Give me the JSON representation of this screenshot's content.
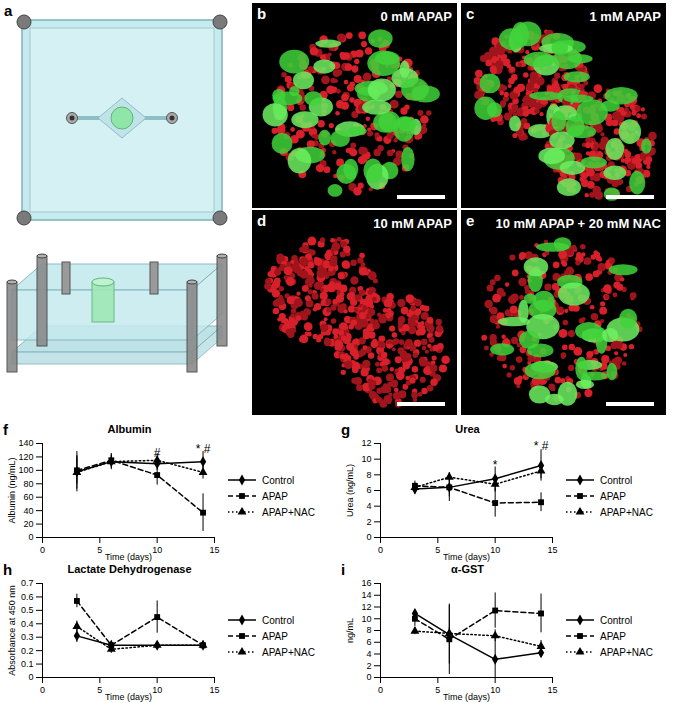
{
  "chart_data": [
    {
      "type": "line",
      "title": "Albumin",
      "x_label": "Time (days)",
      "y_label": "Albumin (ng/mL)",
      "x": [
        3,
        6,
        10,
        14
      ],
      "xlim": [
        0,
        15
      ],
      "xticks": [
        0,
        5,
        10,
        15
      ],
      "ylim": [
        0,
        140
      ],
      "yticks": [
        0,
        20,
        40,
        60,
        80,
        100,
        120,
        140
      ],
      "grid": false,
      "legend": "right",
      "series": [
        {
          "name": "Control",
          "color": "#000000",
          "marker": "diamond",
          "line_style": "solid",
          "values": [
            98,
            113,
            110,
            113
          ],
          "errors": [
            30,
            10,
            10,
            15
          ]
        },
        {
          "name": "APAP",
          "color": "#000000",
          "marker": "square",
          "line_style": "dashed",
          "values": [
            100,
            115,
            93,
            37
          ],
          "errors": [
            20,
            8,
            15,
            28
          ]
        },
        {
          "name": "APAP+NAC",
          "color": "#000000",
          "marker": "triangle",
          "line_style": "dotted",
          "values": [
            97,
            113,
            115,
            97
          ],
          "errors": [
            25,
            12,
            10,
            10
          ]
        }
      ],
      "annotations": [
        {
          "x": 10,
          "y": 126,
          "text": "#"
        },
        {
          "x": 14,
          "y": 131,
          "text": "* #"
        }
      ]
    },
    {
      "type": "line",
      "title": "Urea",
      "x_label": "Time (days)",
      "y_label": "Urea (ng/mL)",
      "x": [
        3,
        6,
        10,
        14
      ],
      "xlim": [
        0,
        15
      ],
      "xticks": [
        0,
        5,
        10,
        15
      ],
      "ylim": [
        0,
        12
      ],
      "yticks": [
        0,
        2,
        4,
        6,
        8,
        10,
        12
      ],
      "grid": false,
      "legend": "right",
      "series": [
        {
          "name": "Control",
          "color": "#000000",
          "marker": "diamond",
          "line_style": "solid",
          "values": [
            6.2,
            6.4,
            7.5,
            9.2
          ],
          "errors": [
            0.7,
            1.8,
            1.5,
            2.0
          ]
        },
        {
          "name": "APAP",
          "color": "#000000",
          "marker": "square",
          "line_style": "dashed",
          "values": [
            6.6,
            6.4,
            4.4,
            4.5
          ],
          "errors": [
            0.6,
            1.2,
            1.8,
            1.2
          ]
        },
        {
          "name": "APAP+NAC",
          "color": "#000000",
          "marker": "triangle",
          "line_style": "dotted",
          "values": [
            6.4,
            7.7,
            6.8,
            8.5
          ],
          "errors": [
            0.5,
            0.6,
            1.0,
            1.0
          ]
        }
      ],
      "annotations": [
        {
          "x": 10,
          "y": 9.2,
          "text": "*"
        },
        {
          "x": 14,
          "y": 11.6,
          "text": "* #"
        }
      ]
    },
    {
      "type": "line",
      "title": "Lactate Dehydrogenase",
      "x_label": "Time (days)",
      "y_label": "Absorbance at 450 nm",
      "x": [
        3,
        6,
        10,
        14
      ],
      "xlim": [
        0,
        15
      ],
      "xticks": [
        0,
        5,
        10,
        15
      ],
      "ylim": [
        0,
        0.7
      ],
      "yticks": [
        0,
        0.1,
        0.2,
        0.3,
        0.4,
        0.5,
        0.6,
        0.7
      ],
      "grid": false,
      "legend": "right",
      "series": [
        {
          "name": "Control",
          "color": "#000000",
          "marker": "diamond",
          "line_style": "solid",
          "values": [
            0.31,
            0.24,
            0.24,
            0.24
          ],
          "errors": [
            0.05,
            0.02,
            0.01,
            0.01
          ]
        },
        {
          "name": "APAP",
          "color": "#000000",
          "marker": "square",
          "line_style": "dashed",
          "values": [
            0.57,
            0.24,
            0.45,
            0.24
          ],
          "errors": [
            0.05,
            0.03,
            0.12,
            0.01
          ]
        },
        {
          "name": "APAP+NAC",
          "color": "#000000",
          "marker": "triangle",
          "line_style": "dotted",
          "values": [
            0.38,
            0.21,
            0.24,
            0.24
          ],
          "errors": [
            0.04,
            0.03,
            0.01,
            0.01
          ]
        }
      ]
    },
    {
      "type": "line",
      "title": "α-GST",
      "x_label": "Time (days)",
      "y_label": "ng/mL",
      "x": [
        3,
        6,
        10,
        14
      ],
      "xlim": [
        0,
        15
      ],
      "xticks": [
        0,
        5,
        10,
        15
      ],
      "ylim": [
        0,
        16
      ],
      "yticks": [
        0,
        2,
        4,
        6,
        8,
        10,
        12,
        14,
        16
      ],
      "grid": false,
      "legend": "right",
      "series": [
        {
          "name": "Control",
          "color": "#000000",
          "marker": "diamond",
          "line_style": "solid",
          "values": [
            10.9,
            7.3,
            3.1,
            4.2
          ],
          "errors": [
            0.5,
            5.0,
            4.0,
            0.8
          ]
        },
        {
          "name": "APAP",
          "color": "#000000",
          "marker": "square",
          "line_style": "dashed",
          "values": [
            10.0,
            6.5,
            11.4,
            10.9
          ],
          "errors": [
            1.3,
            6.0,
            3.0,
            3.3
          ]
        },
        {
          "name": "APAP+NAC",
          "color": "#000000",
          "marker": "triangle",
          "line_style": "dotted",
          "values": [
            7.9,
            7.5,
            7.1,
            5.3
          ],
          "errors": [
            0.6,
            1.0,
            1.0,
            1.0
          ]
        }
      ]
    }
  ],
  "chart_letters": [
    "f",
    "g",
    "h",
    "i"
  ],
  "diagram": {
    "letter": "a"
  },
  "images": [
    {
      "letter": "b",
      "label": "0 mM APAP"
    },
    {
      "letter": "c",
      "label": "1 mM APAP"
    },
    {
      "letter": "d",
      "label": "10 mM APAP"
    },
    {
      "letter": "e",
      "label": "10 mM APAP + 20 mM NAC"
    }
  ]
}
